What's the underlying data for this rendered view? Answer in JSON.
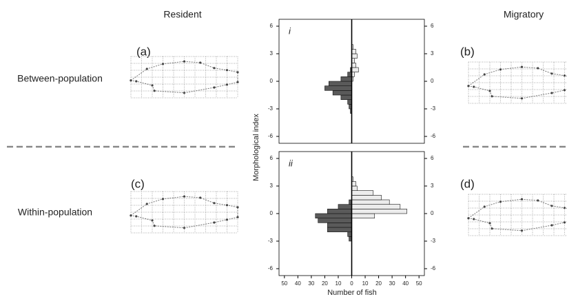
{
  "figure": {
    "columns": [
      "Resident",
      "Migratory"
    ],
    "rows": [
      "Between-population",
      "Within-population"
    ],
    "panels": [
      "(a)",
      "(b)",
      "(c)",
      "(d)"
    ]
  },
  "chart_data": [
    {
      "type": "histogram",
      "orientation": "horizontal",
      "panel_label": "i",
      "ylabel": "Morphological index",
      "bins": [
        -4,
        -3.5,
        -3,
        -2.5,
        -2,
        -1.5,
        -1,
        -0.5,
        0,
        0.5,
        1,
        1.5,
        2,
        2.5,
        3,
        3.5,
        4
      ],
      "series": [
        {
          "side": "left",
          "color": "#5a5a5a",
          "values": [
            0,
            1,
            2,
            3,
            8,
            14,
            20,
            17,
            8,
            3,
            1,
            0,
            0,
            0,
            0,
            0
          ]
        },
        {
          "side": "right",
          "color": "#ececec",
          "values": [
            0,
            0,
            0,
            0,
            0,
            0,
            0,
            0,
            1,
            2,
            5,
            3,
            2,
            4,
            3,
            1
          ]
        }
      ],
      "xlim": [
        -54,
        54
      ],
      "ylim": [
        -6.75,
        6.75
      ],
      "yticks": [
        -6,
        -3,
        0,
        3,
        6
      ]
    },
    {
      "type": "histogram",
      "orientation": "horizontal",
      "panel_label": "ii",
      "xlabel": "Number of fish",
      "bins": [
        -4,
        -3.5,
        -3,
        -2.5,
        -2,
        -1.5,
        -1,
        -0.5,
        0,
        0.5,
        1,
        1.5,
        2,
        2.5,
        3,
        3.5,
        4
      ],
      "series": [
        {
          "side": "left",
          "color": "#5a5a5a",
          "values": [
            0,
            0,
            2,
            3,
            18,
            18,
            25,
            27,
            18,
            10,
            2,
            0,
            0,
            0,
            0,
            0
          ]
        },
        {
          "side": "right",
          "color": "#ececec",
          "values": [
            0,
            0,
            0,
            0,
            0,
            0,
            0,
            17,
            41,
            36,
            28,
            22,
            16,
            4,
            3,
            1
          ]
        }
      ],
      "xlim": [
        -54,
        54
      ],
      "ylim": [
        -6.75,
        6.75
      ],
      "yticks": [
        -6,
        -3,
        0,
        3,
        6
      ],
      "xticks": [
        {
          "value": -50,
          "label": "50"
        },
        {
          "value": -40,
          "label": "40"
        },
        {
          "value": -30,
          "label": "30"
        },
        {
          "value": -20,
          "label": "20"
        },
        {
          "value": -10,
          "label": "10"
        },
        0,
        10,
        20,
        30,
        40,
        50
      ]
    }
  ]
}
